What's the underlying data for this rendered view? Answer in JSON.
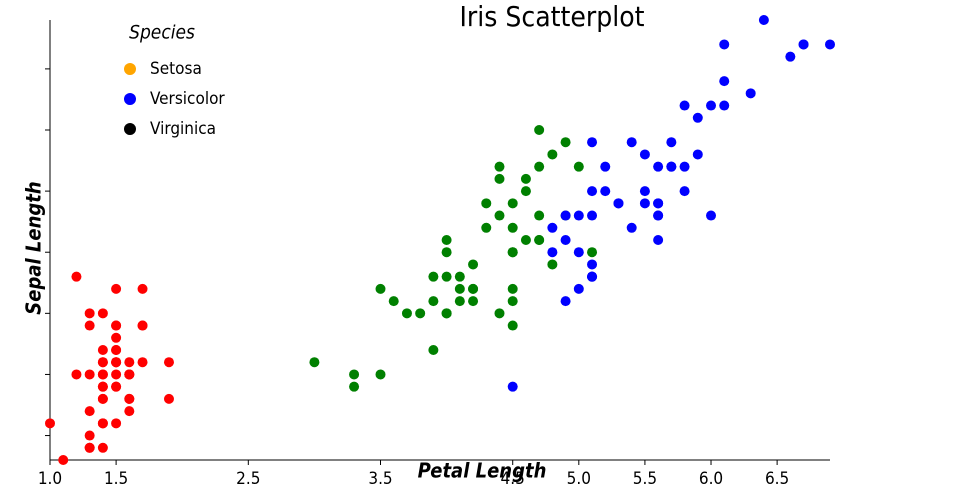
{
  "chart_data": {
    "type": "scatter",
    "title": "Iris Scatterplot",
    "x_label": "Petal Length",
    "y_label": "Sepal Length",
    "legend_title": "Species",
    "legend": "top-left",
    "xlim": [
      1,
      6.9
    ],
    "ylim": [
      4.3,
      7.9
    ],
    "xticks": [
      {
        "value": 1,
        "label": "1.0"
      },
      1.5,
      2.5,
      3.5,
      4.5,
      {
        "value": 5,
        "label": "5.0"
      },
      5.5,
      {
        "value": 6,
        "label": "6.0"
      },
      6.5
    ],
    "yticks": [
      4.5,
      5,
      5.5,
      6,
      6.5,
      7,
      7.5
    ],
    "series": [
      {
        "name": "Setosa",
        "color": "#ff0000",
        "legend_color": "#ffa500",
        "x": [
          1.4,
          1.4,
          1.3,
          1.5,
          1.4,
          1.7,
          1.4,
          1.5,
          1.4,
          1.5,
          1.5,
          1.6,
          1.4,
          1.1,
          1.2,
          1.5,
          1.3,
          1.4,
          1.7,
          1.5,
          1.7,
          1.5,
          1.0,
          1.7,
          1.9,
          1.6,
          1.6,
          1.5,
          1.4,
          1.6,
          1.6,
          1.5,
          1.5,
          1.4,
          1.5,
          1.2,
          1.3,
          1.4,
          1.3,
          1.5,
          1.3,
          1.3,
          1.3,
          1.6,
          1.9,
          1.4,
          1.6,
          1.4,
          1.5,
          1.4
        ],
        "values": [
          5.1,
          4.9,
          4.7,
          4.6,
          5.0,
          5.4,
          4.6,
          5.0,
          4.4,
          4.9,
          5.4,
          4.8,
          4.8,
          4.3,
          5.8,
          5.7,
          5.4,
          5.1,
          5.7,
          5.1,
          5.4,
          5.1,
          4.6,
          5.1,
          4.8,
          5.0,
          5.0,
          5.2,
          5.2,
          4.7,
          4.8,
          5.4,
          5.2,
          5.5,
          4.9,
          5.0,
          5.5,
          4.9,
          4.4,
          5.1,
          5.0,
          4.5,
          4.4,
          5.0,
          5.1,
          4.8,
          5.1,
          4.6,
          5.3,
          5.0
        ]
      },
      {
        "name": "Versicolor",
        "color": "#008000",
        "legend_color": "#0000ff",
        "x": [
          4.7,
          4.5,
          4.9,
          4.0,
          4.6,
          4.5,
          4.7,
          3.3,
          4.6,
          3.9,
          3.5,
          4.2,
          4.0,
          4.7,
          3.6,
          4.4,
          4.5,
          4.1,
          4.5,
          3.9,
          4.8,
          4.0,
          4.9,
          4.7,
          4.3,
          4.4,
          4.8,
          5.0,
          4.5,
          3.5,
          3.8,
          3.7,
          3.9,
          5.1,
          4.5,
          4.5,
          4.7,
          4.4,
          4.1,
          4.0,
          4.4,
          4.6,
          4.0,
          3.3,
          4.2,
          4.2,
          4.2,
          4.3,
          3.0,
          4.1
        ],
        "values": [
          7.0,
          6.4,
          6.9,
          5.5,
          6.5,
          5.7,
          6.3,
          4.9,
          6.6,
          5.2,
          5.0,
          5.9,
          6.0,
          6.1,
          5.6,
          6.7,
          5.6,
          5.8,
          6.2,
          5.6,
          5.9,
          6.1,
          6.3,
          6.1,
          6.4,
          6.6,
          6.8,
          6.7,
          6.0,
          5.7,
          5.5,
          5.5,
          5.8,
          6.0,
          5.4,
          6.0,
          6.7,
          6.3,
          5.6,
          5.5,
          5.5,
          6.1,
          5.8,
          5.0,
          5.6,
          5.7,
          5.7,
          6.2,
          5.1,
          5.7
        ]
      },
      {
        "name": "Virginica",
        "color": "#0000ff",
        "legend_color": "#000000",
        "x": [
          6.0,
          5.1,
          5.9,
          5.6,
          5.8,
          6.6,
          4.5,
          6.3,
          5.8,
          6.1,
          5.1,
          5.3,
          5.5,
          5.0,
          5.1,
          5.3,
          5.5,
          6.7,
          6.9,
          5.0,
          5.7,
          4.9,
          6.7,
          4.9,
          5.7,
          6.0,
          4.8,
          4.9,
          5.6,
          5.8,
          6.1,
          6.4,
          5.6,
          5.1,
          5.6,
          6.1,
          5.6,
          5.5,
          4.8,
          5.4,
          5.6,
          5.1,
          5.1,
          5.9,
          5.7,
          5.2,
          5.0,
          5.2,
          5.4,
          5.1
        ],
        "values": [
          6.3,
          5.8,
          7.1,
          6.3,
          6.5,
          7.6,
          4.9,
          7.3,
          6.7,
          7.2,
          6.5,
          6.4,
          6.8,
          5.7,
          5.8,
          6.4,
          6.5,
          7.7,
          7.7,
          6.0,
          6.9,
          5.6,
          7.7,
          6.3,
          6.7,
          7.2,
          6.2,
          6.1,
          6.4,
          7.2,
          7.4,
          7.9,
          6.4,
          6.3,
          6.1,
          7.7,
          6.3,
          6.4,
          6.0,
          6.9,
          6.7,
          6.9,
          5.8,
          6.8,
          6.7,
          6.7,
          6.3,
          6.5,
          6.2,
          5.9
        ]
      }
    ]
  }
}
